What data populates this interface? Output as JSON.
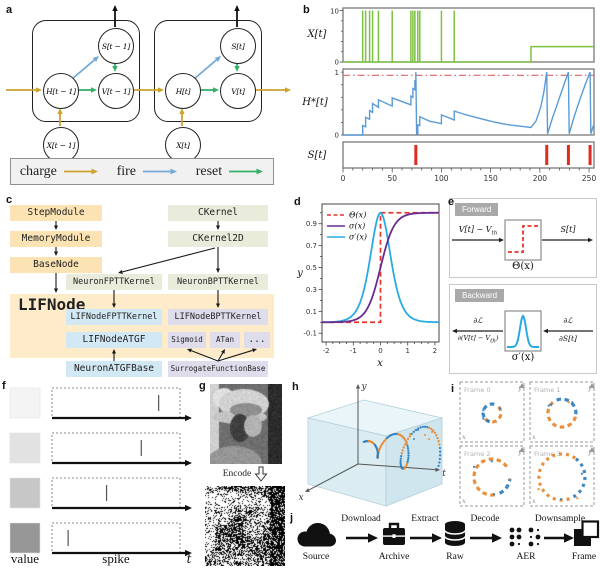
{
  "colors": {
    "charge": "#cda32d",
    "fire": "#74a9d8",
    "reset": "#33b06a",
    "input_green": "#7dc242",
    "membrane_blue": "#5b9bd5",
    "threshold_red": "#e06666",
    "spike_red": "#e02b20",
    "theta_red": "#e8342a",
    "sigma_purple": "#6a2c91",
    "sigma_prime_cyan": "#29abe2",
    "on_orange": "#e8872b",
    "off_blue": "#2d7fc1",
    "box_orange": "#fbe3b4",
    "box_green": "#e9ecda",
    "box_blue": "#d2e8f4",
    "box_purple": "#dfdcec",
    "lif_bg": "#fdebc9"
  },
  "panels": {
    "a": {
      "label": "a",
      "prev": {
        "s": "S[t − 1]",
        "h": "H[t − 1]",
        "v": "V[t − 1]",
        "x": "X[t − 1]"
      },
      "cur": {
        "s": "S[t]",
        "h": "H[t]",
        "v": "V[t]",
        "x": "X[t]"
      },
      "legend": [
        {
          "name": "charge",
          "color": "#cda32d"
        },
        {
          "name": "fire",
          "color": "#74a9d8"
        },
        {
          "name": "reset",
          "color": "#33b06a"
        }
      ]
    },
    "b": {
      "label": "b"
    },
    "c": {
      "label": "c",
      "nodes": {
        "step_module": "StepModule",
        "memory_module": "MemoryModule",
        "base_node": "BaseNode",
        "ckernel": "CKernel",
        "ckernel2d": "CKernel2D",
        "neuron_fptt": "NeuronFPTTKernel",
        "neuron_bptt": "NeuronBPTTKernel",
        "lif_node": "LIFNode",
        "lif_fptt": "LIFNodeFPTTKernel",
        "lif_bptt": "LIFNodeBPTTKernel",
        "lif_atgf": "LIFNodeATGF",
        "sigmoid": "Sigmoid",
        "atan": "ATan",
        "more": "...",
        "neuron_atgf_base": "NeuronATGFBase",
        "surrogate_base": "SurrogateFunctionBase"
      }
    },
    "d": {
      "label": "d"
    },
    "e": {
      "label": "e",
      "forward_title": "Forward",
      "backward_title": "Backward",
      "fwd_in": {
        "main": "V[t] − V",
        "sub": "th"
      },
      "fwd_out": "S[t]",
      "theta_label": "Θ(x)",
      "sigma_prime_label": "σ′(x)",
      "grad_num": "∂ℒ",
      "grad_den_right": "∂S[t]",
      "grad_den_left": {
        "p1": "∂(V[t] − V",
        "sub": "th",
        "p2": ")"
      }
    },
    "f": {
      "label": "f"
    },
    "g": {
      "label": "g",
      "encode": "Encode"
    },
    "h": {
      "label": "h"
    },
    "i": {
      "label": "i"
    },
    "j": {
      "label": "j",
      "stages": [
        {
          "icon": "cloud-icon",
          "label": "Source"
        },
        {
          "icon": "briefcase-icon",
          "label": "Archive"
        },
        {
          "icon": "database-icon",
          "label": "Raw"
        },
        {
          "icon": "aer-dots-icon",
          "label": "AER"
        },
        {
          "icon": "frames-icon",
          "label": "Frame"
        }
      ],
      "steps": [
        "Download",
        "Extract",
        "Decode",
        "Downsample"
      ]
    }
  },
  "chart_data": [
    {
      "panel": "b",
      "type": "line",
      "xlim": [
        0,
        255
      ],
      "xticks": [
        0,
        50,
        100,
        150,
        200,
        250
      ],
      "subplots": [
        {
          "ylabel": "X[t]",
          "ylim": [
            0,
            10.5
          ],
          "yticks": [
            0,
            10
          ],
          "color": "#7dc242",
          "input_spike_times": [
            20,
            23,
            27,
            30,
            36,
            50,
            69,
            71,
            73,
            76,
            78,
            100,
            113
          ],
          "spike_height": 10,
          "step_input": {
            "start": 191,
            "end": 255,
            "height": 3
          }
        },
        {
          "ylabel": "H*[t]",
          "ylim": [
            0,
            1.05
          ],
          "yticks": [
            0,
            1
          ],
          "threshold": 0.95,
          "threshold_color": "#e06666",
          "color": "#5b9bd5",
          "trace": [
            [
              0,
              0
            ],
            [
              20,
              0
            ],
            [
              20,
              0.15
            ],
            [
              23,
              0.13
            ],
            [
              23,
              0.28
            ],
            [
              27,
              0.25
            ],
            [
              27,
              0.39
            ],
            [
              30,
              0.36
            ],
            [
              30,
              0.5
            ],
            [
              36,
              0.44
            ],
            [
              36,
              0.56
            ],
            [
              50,
              0.46
            ],
            [
              50,
              0.59
            ],
            [
              69,
              0.48
            ],
            [
              69,
              0.62
            ],
            [
              71,
              0.6
            ],
            [
              71,
              0.74
            ],
            [
              73,
              0.72
            ],
            [
              73,
              0.86
            ],
            [
              74,
              0.85
            ],
            [
              74,
              1
            ],
            [
              74.8,
              0.02
            ],
            [
              76,
              0.02
            ],
            [
              76,
              0.16
            ],
            [
              78,
              0.15
            ],
            [
              78,
              0.29
            ],
            [
              88,
              0.22
            ],
            [
              100,
              0.18
            ],
            [
              100,
              0.32
            ],
            [
              113,
              0.24
            ],
            [
              113,
              0.38
            ],
            [
              123,
              0.33
            ],
            [
              135,
              0.28
            ],
            [
              150,
              0.22
            ],
            [
              165,
              0.17
            ],
            [
              180,
              0.14
            ],
            [
              191,
              0.12
            ],
            [
              196,
              0.22
            ],
            [
              201,
              0.45
            ],
            [
              204,
              0.68
            ],
            [
              207,
              1
            ],
            [
              207.8,
              0.02
            ],
            [
              213,
              0.28
            ],
            [
              219,
              0.55
            ],
            [
              224,
              0.78
            ],
            [
              229,
              1
            ],
            [
              229.8,
              0.02
            ],
            [
              235,
              0.3
            ],
            [
              241,
              0.58
            ],
            [
              246,
              0.8
            ],
            [
              251,
              1
            ],
            [
              251.8,
              0.02
            ],
            [
              255,
              0.18
            ]
          ]
        },
        {
          "ylabel": "S[t]",
          "output_spike_times": [
            74,
            207,
            229,
            251
          ],
          "color": "#e02b20"
        }
      ]
    },
    {
      "panel": "d",
      "type": "line",
      "xlabel": "x",
      "ylabel": "y",
      "xlim": [
        -2,
        2
      ],
      "ylim": [
        -0.18,
        1.08
      ],
      "xticks": [
        -2,
        -1,
        0,
        1,
        2
      ],
      "yticks": [
        -0.1,
        0.1,
        0.3,
        0.5,
        0.7,
        0.9
      ],
      "legend_position": "upper-left",
      "series": [
        {
          "name": "Θ(x)",
          "fn": "heaviside",
          "color": "#e8342a",
          "dash": true
        },
        {
          "name": "σ(x)",
          "fn": "sigmoid",
          "alpha": 4,
          "color": "#6a2c91",
          "dash": false
        },
        {
          "name": "σ′(x)",
          "fn": "sigmoid_derivative",
          "alpha": 4,
          "color": "#29abe2",
          "dash": false
        }
      ]
    },
    {
      "panel": "f",
      "type": "latency-encoding",
      "rows": [
        {
          "value_shade": "#f4f4f4",
          "spike_time": 0.86
        },
        {
          "value_shade": "#e2e2e2",
          "spike_time": 0.72
        },
        {
          "value_shade": "#c7c7c7",
          "spike_time": 0.44
        },
        {
          "value_shade": "#979797",
          "spike_time": 0.13
        }
      ],
      "labels": {
        "value": "value",
        "spike": "spike",
        "time_axis": "t"
      }
    },
    {
      "panel": "h",
      "type": "scatter3d",
      "axis_labels": {
        "x": "x",
        "y": "y",
        "t": "t"
      },
      "series": [
        {
          "name": "ON events",
          "color": "#e8872b"
        },
        {
          "name": "OFF events",
          "color": "#2d7fc1"
        }
      ],
      "description": "expanding spiral of DVS events inside translucent cube",
      "turns": 2.4
    },
    {
      "panel": "i",
      "type": "scatter",
      "axis_labels": {
        "x": "x",
        "y": "y"
      },
      "colors": [
        "#e8872b",
        "#2d7fc1"
      ],
      "frames": [
        {
          "label": "Frame 0",
          "radius": 9
        },
        {
          "label": "Frame 1",
          "radius": 14
        },
        {
          "label": "Frame 2",
          "radius": 18
        },
        {
          "label": "Frame 3",
          "radius": 23
        }
      ]
    }
  ]
}
